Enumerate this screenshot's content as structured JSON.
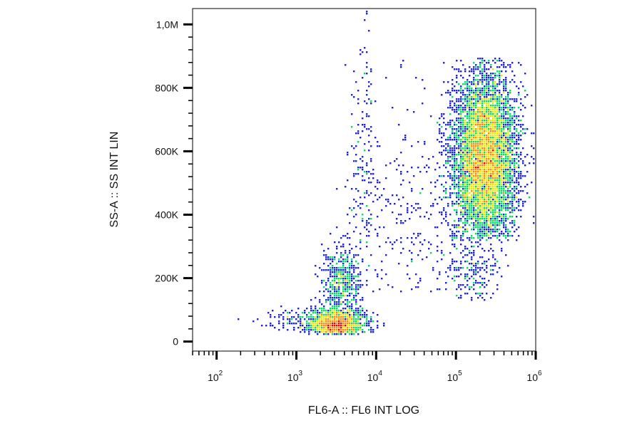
{
  "chart_data": {
    "type": "scatter",
    "subtype": "flow-cytometry-density-dot-plot",
    "xlabel": "FL6-A :: FL6 INT LOG",
    "ylabel": "SS-A :: SS INT LIN",
    "x_scale": "log",
    "y_scale": "linear",
    "xlim": [
      50,
      1000000
    ],
    "ylim": [
      -30000,
      1050000
    ],
    "grid": false,
    "legend": "none",
    "density_colors": [
      "#1f22d6",
      "#00c0ff",
      "#00e060",
      "#e8e800",
      "#ff8800",
      "#e80000"
    ],
    "x_ticks": [
      {
        "value": 100,
        "base": "10",
        "exp": "2"
      },
      {
        "value": 1000,
        "base": "10",
        "exp": "3"
      },
      {
        "value": 10000,
        "base": "10",
        "exp": "4"
      },
      {
        "value": 100000,
        "base": "10",
        "exp": "5"
      },
      {
        "value": 1000000,
        "base": "10",
        "exp": "6"
      }
    ],
    "y_ticks": [
      {
        "value": 0,
        "label": "0"
      },
      {
        "value": 200000,
        "label": "200K"
      },
      {
        "value": 400000,
        "label": "400K"
      },
      {
        "value": 600000,
        "label": "600K"
      },
      {
        "value": 800000,
        "label": "800K"
      },
      {
        "value": 1000000,
        "label": "1,0M"
      }
    ],
    "populations": [
      {
        "id": "low-dense",
        "x_center": 3200,
        "x_log_sd": 0.17,
        "y_center": 55000,
        "y_sd": 25000,
        "y_min": 25000,
        "count": 1500
      },
      {
        "id": "low-upper",
        "x_center": 3800,
        "x_log_sd": 0.12,
        "y_center": 190000,
        "y_sd": 55000,
        "y_min": 90000,
        "count": 500
      },
      {
        "id": "low-tail",
        "x_center": 1500,
        "x_log_sd": 0.3,
        "y_center": 70000,
        "y_sd": 20000,
        "y_min": 30000,
        "count": 160
      },
      {
        "id": "mid-column",
        "x_center": 7000,
        "x_log_sd": 0.09,
        "y_center": 560000,
        "y_sd": 210000,
        "y_min": 300000,
        "count": 170
      },
      {
        "id": "bridge",
        "x_center": 30000,
        "x_log_sd": 0.35,
        "y_center": 420000,
        "y_sd": 170000,
        "y_min": 150000,
        "count": 240
      },
      {
        "id": "high-main",
        "x_center": 230000,
        "x_log_sd": 0.2,
        "y_center": 580000,
        "y_sd": 130000,
        "y_min": 320000,
        "y_max": 890000,
        "count": 6500
      },
      {
        "id": "high-lower",
        "x_center": 160000,
        "x_log_sd": 0.18,
        "y_center": 250000,
        "y_sd": 90000,
        "y_min": 130000,
        "count": 280
      }
    ]
  }
}
